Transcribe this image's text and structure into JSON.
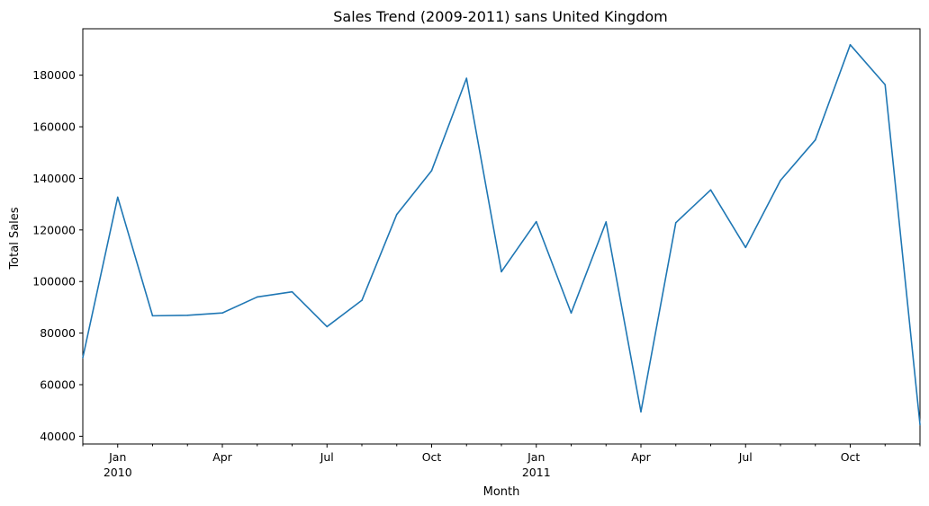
{
  "chart_data": {
    "type": "line",
    "title": "Sales Trend (2009-2011) sans United Kingdom",
    "xlabel": "Month",
    "ylabel": "Total Sales",
    "x": [
      "2009-12",
      "2010-01",
      "2010-02",
      "2010-03",
      "2010-04",
      "2010-05",
      "2010-06",
      "2010-07",
      "2010-08",
      "2010-09",
      "2010-10",
      "2010-11",
      "2010-12",
      "2011-01",
      "2011-02",
      "2011-03",
      "2011-04",
      "2011-05",
      "2011-06",
      "2011-07",
      "2011-08",
      "2011-09",
      "2011-10",
      "2011-11",
      "2011-12"
    ],
    "series": [
      {
        "values": [
          70500,
          132700,
          86700,
          86900,
          87800,
          94000,
          96000,
          82500,
          92700,
          126000,
          143000,
          178800,
          103800,
          123200,
          87800,
          123100,
          49500,
          122800,
          135500,
          113200,
          139200,
          154900,
          191800,
          176300,
          44500
        ],
        "color": "#1f77b4"
      }
    ],
    "ylim": [
      37000,
      198000
    ],
    "yticks": [
      40000,
      60000,
      80000,
      100000,
      120000,
      140000,
      160000,
      180000
    ],
    "xticks": [
      {
        "index": 1,
        "label": "Jan",
        "sublabel": "2010"
      },
      {
        "index": 4,
        "label": "Apr",
        "sublabel": ""
      },
      {
        "index": 7,
        "label": "Jul",
        "sublabel": ""
      },
      {
        "index": 10,
        "label": "Oct",
        "sublabel": ""
      },
      {
        "index": 13,
        "label": "Jan",
        "sublabel": "2011"
      },
      {
        "index": 16,
        "label": "Apr",
        "sublabel": ""
      },
      {
        "index": 19,
        "label": "Jul",
        "sublabel": ""
      },
      {
        "index": 22,
        "label": "Oct",
        "sublabel": ""
      }
    ],
    "grid": false,
    "legend": "none"
  }
}
